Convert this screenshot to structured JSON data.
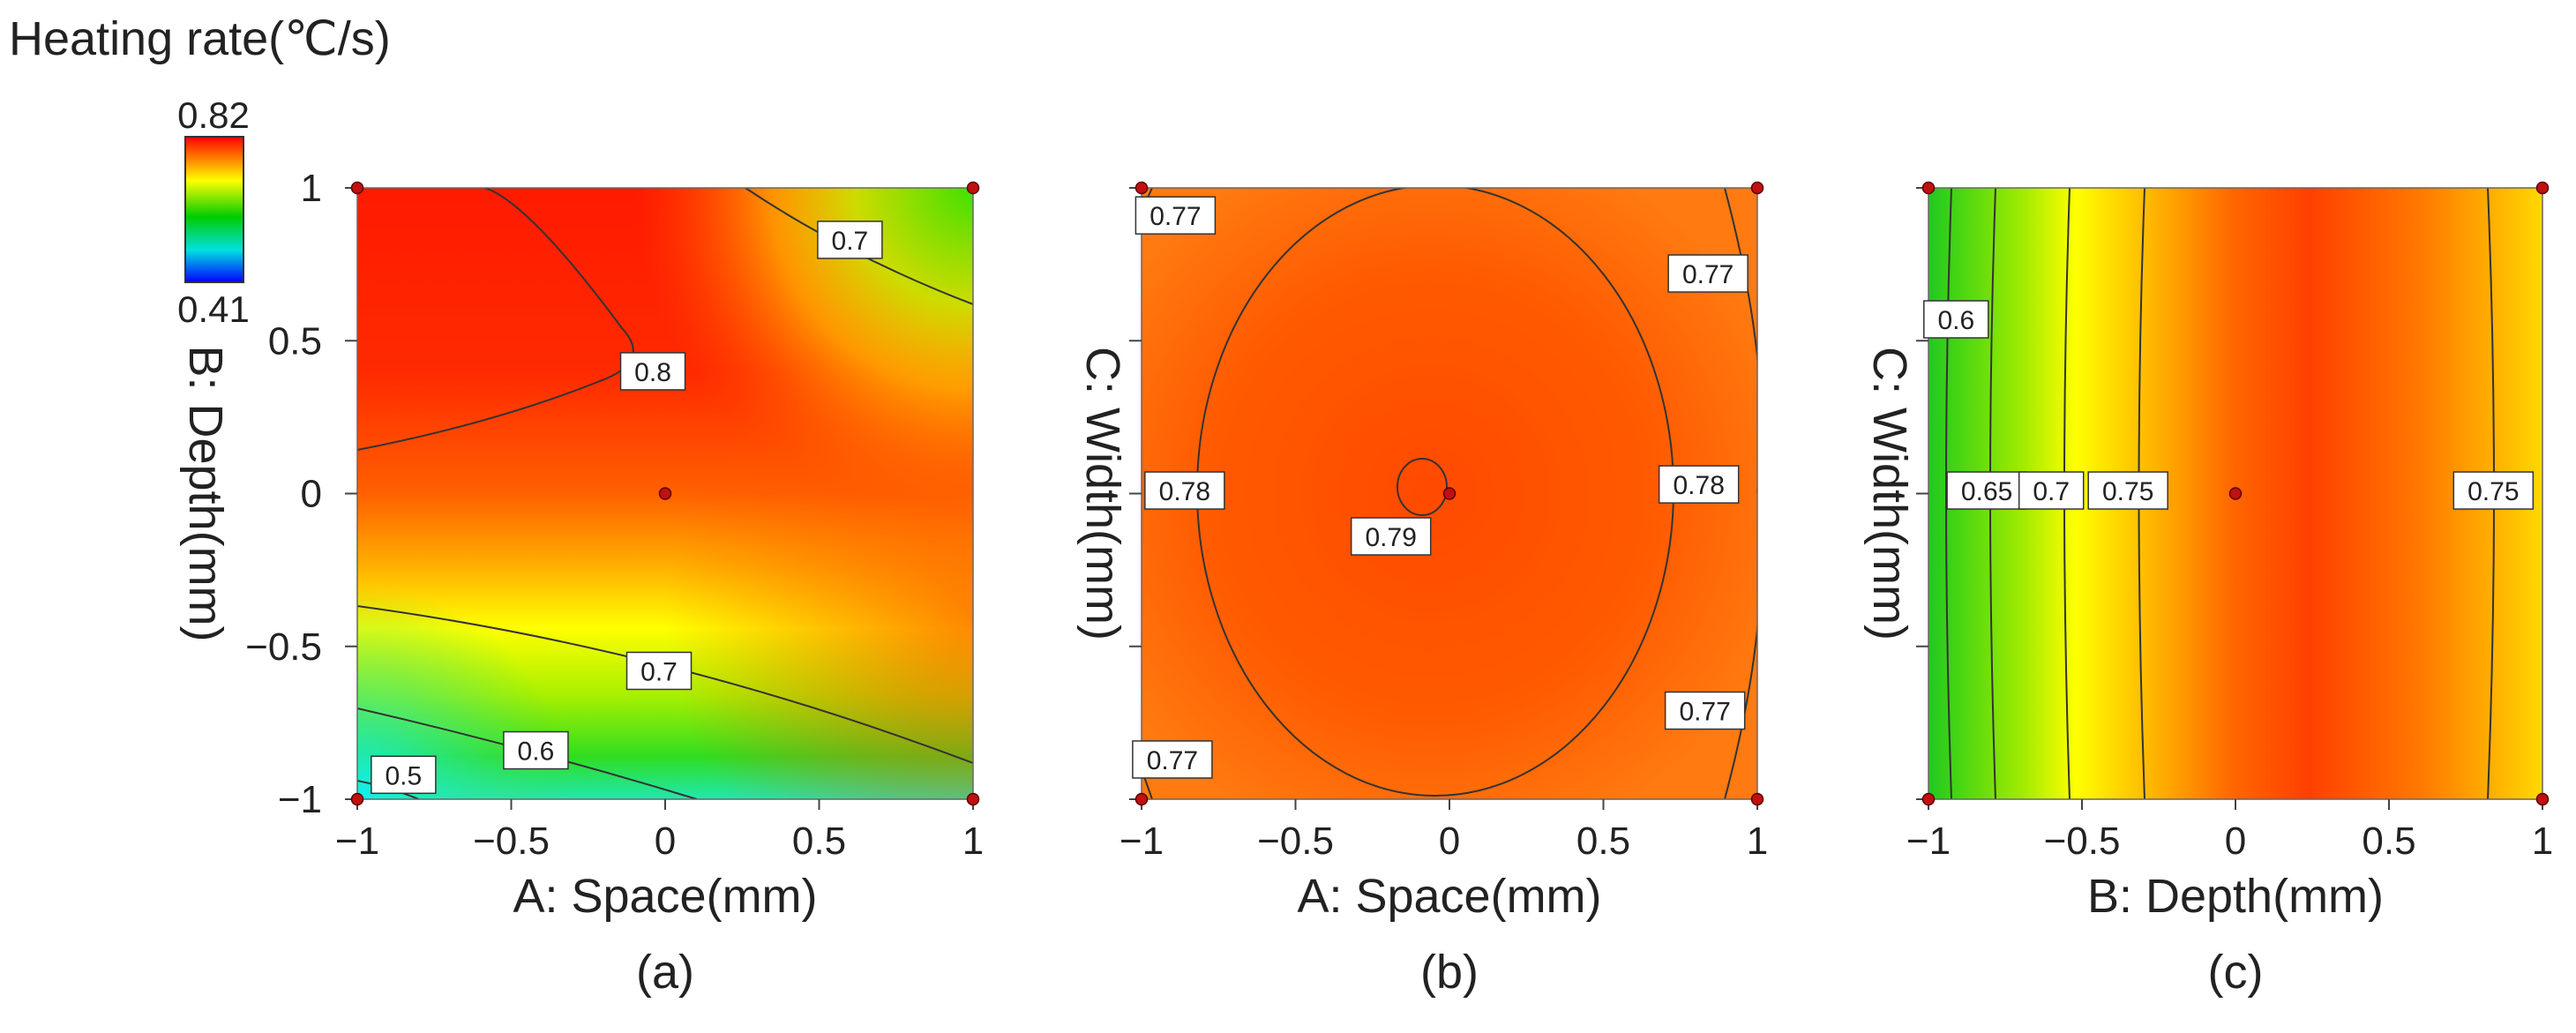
{
  "figure_title": "Heating rate(℃/s)",
  "colorbar": {
    "max_label": "0.82",
    "min_label": "0.41",
    "max": 0.82,
    "min": 0.41,
    "stops": [
      "#ff0000",
      "#ffff00",
      "#00cc00",
      "#00ffff",
      "#0000ff"
    ]
  },
  "chart_data": [
    {
      "type": "contour",
      "caption": "(a)",
      "xlabel": "A: Space(mm)",
      "ylabel": "B: Depth(mm)",
      "xlim": [
        -1,
        1
      ],
      "ylim": [
        -1,
        1
      ],
      "xticks": [
        "−1",
        "−0.5",
        "0",
        "0.5",
        "1"
      ],
      "yticks": [
        "−1",
        "−0.5",
        "0",
        "0.5",
        "1"
      ],
      "design_points": [
        [
          -1,
          1
        ],
        [
          1,
          1
        ],
        [
          0,
          0
        ],
        [
          -1,
          -1
        ],
        [
          1,
          -1
        ]
      ],
      "contour_labels": [
        {
          "text": "0.7",
          "x": 0.6,
          "y": 0.83
        },
        {
          "text": "0.8",
          "x": -0.04,
          "y": 0.4
        },
        {
          "text": "0.7",
          "x": -0.02,
          "y": -0.58
        },
        {
          "text": "0.6",
          "x": -0.42,
          "y": -0.84
        },
        {
          "text": "0.5",
          "x": -0.85,
          "y": -0.92
        }
      ]
    },
    {
      "type": "contour",
      "caption": "(b)",
      "xlabel": "A: Space(mm)",
      "ylabel": "C: Width(mm)",
      "xlim": [
        -1,
        1
      ],
      "ylim": [
        -1,
        1
      ],
      "xticks": [
        "−1",
        "−0.5",
        "0",
        "0.5",
        "1"
      ],
      "yticks": [],
      "design_points": [
        [
          -1,
          1
        ],
        [
          1,
          1
        ],
        [
          0,
          0
        ],
        [
          -1,
          -1
        ],
        [
          1,
          -1
        ]
      ],
      "contour_labels": [
        {
          "text": "0.77",
          "x": -0.89,
          "y": 0.91
        },
        {
          "text": "0.77",
          "x": 0.84,
          "y": 0.72
        },
        {
          "text": "0.78",
          "x": -0.86,
          "y": 0.01
        },
        {
          "text": "0.78",
          "x": 0.81,
          "y": 0.03
        },
        {
          "text": "0.79",
          "x": -0.19,
          "y": -0.14
        },
        {
          "text": "0.77",
          "x": 0.83,
          "y": -0.71
        },
        {
          "text": "0.77",
          "x": -0.9,
          "y": -0.87
        }
      ]
    },
    {
      "type": "contour",
      "caption": "(c)",
      "xlabel": "B: Depth(mm)",
      "ylabel": "C: Width(mm)",
      "xlim": [
        -1,
        1
      ],
      "ylim": [
        -1,
        1
      ],
      "xticks": [
        "−1",
        "−0.5",
        "0",
        "0.5",
        "1"
      ],
      "yticks": [],
      "design_points": [
        [
          -1,
          1
        ],
        [
          1,
          1
        ],
        [
          0,
          0
        ],
        [
          -1,
          -1
        ],
        [
          1,
          -1
        ]
      ],
      "contour_labels": [
        {
          "text": "0.6",
          "x": -0.91,
          "y": 0.57
        },
        {
          "text": "0.65",
          "x": -0.81,
          "y": 0.01
        },
        {
          "text": "0.7",
          "x": -0.6,
          "y": 0.01
        },
        {
          "text": "0.75",
          "x": -0.35,
          "y": 0.01
        },
        {
          "text": "0.75",
          "x": 0.84,
          "y": 0.01
        }
      ]
    }
  ]
}
